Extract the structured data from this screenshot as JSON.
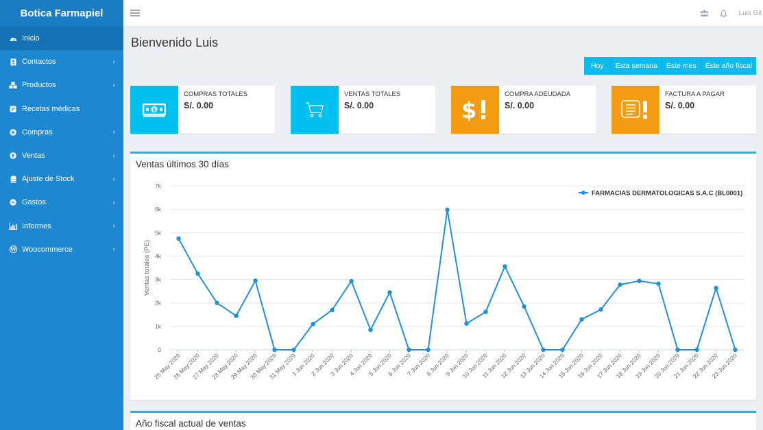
{
  "brand": "Botica Farmapiel",
  "sidebar": {
    "items": [
      {
        "label": "Inicio",
        "icon": "dashboard-icon",
        "active": true,
        "chevron": false
      },
      {
        "label": "Contactos",
        "icon": "address-book-icon",
        "chevron": true
      },
      {
        "label": "Productos",
        "icon": "cubes-icon",
        "chevron": true
      },
      {
        "label": "Recetas médicas",
        "icon": "prescription-icon",
        "chevron": false
      },
      {
        "label": "Compras",
        "icon": "plus-circle-icon",
        "chevron": true
      },
      {
        "label": "Ventas",
        "icon": "arrow-circle-icon",
        "chevron": true
      },
      {
        "label": "Ajuste de Stock",
        "icon": "database-icon",
        "chevron": true
      },
      {
        "label": "Gastos",
        "icon": "minus-circle-icon",
        "chevron": true
      },
      {
        "label": "Informes",
        "icon": "bar-chart-icon",
        "chevron": true
      },
      {
        "label": "Woocommerce",
        "icon": "wordpress-icon",
        "chevron": true
      }
    ],
    "chevron_glyph": "‹"
  },
  "header": {
    "user": "Luis Gil",
    "icons": [
      "users-icon",
      "bell-icon"
    ]
  },
  "main": {
    "title": "Bienvenido Luis",
    "filters": [
      "Hoy",
      "Esta semana",
      "Este mes",
      "Este año fiscal"
    ],
    "info_boxes": [
      {
        "label": "COMPRAS TOTALES",
        "value": "S/. 0.00",
        "color": "#00c0ef",
        "icon": "money-icon"
      },
      {
        "label": "VENTAS TOTALES",
        "value": "S/. 0.00",
        "color": "#00c0ef",
        "icon": "cart-icon"
      },
      {
        "label": "COMPRA ADEUDADA",
        "value": "S/. 0.00",
        "color": "#f39c12",
        "icon": "dollar-exclamation-icon"
      },
      {
        "label": "FACTURA A PAGAR",
        "value": "S/. 0.00",
        "color": "#f39c12",
        "icon": "invoice-exclamation-icon"
      }
    ],
    "sales_panel_title": "Ventas últimos 30 días",
    "fiscal_panel_title": "Año fiscal actual de ventas"
  },
  "chart_data": {
    "type": "line",
    "title": "",
    "ylabel": "Ventas totales (PE)",
    "ylim": [
      0,
      7000
    ],
    "yticks": [
      "0",
      "1k",
      "2k",
      "3k",
      "4k",
      "5k",
      "6k",
      "7k"
    ],
    "categories": [
      "25 May 2020",
      "26 May 2020",
      "27 May 2020",
      "28 May 2020",
      "29 May 2020",
      "30 May 2020",
      "31 May 2020",
      "1 Jun 2020",
      "2 Jun 2020",
      "3 Jun 2020",
      "4 Jun 2020",
      "5 Jun 2020",
      "6 Jun 2020",
      "7 Jun 2020",
      "8 Jun 2020",
      "9 Jun 2020",
      "10 Jun 2020",
      "11 Jun 2020",
      "12 Jun 2020",
      "13 Jun 2020",
      "14 Jun 2020",
      "15 Jun 2020",
      "16 Jun 2020",
      "17 Jun 2020",
      "18 Jun 2020",
      "19 Jun 2020",
      "20 Jun 2020",
      "21 Jun 2020",
      "22 Jun 2020",
      "23 Jun 2020"
    ],
    "series": [
      {
        "name": "FARMACIAS DERMATOLOGICAS S.A.C (BL0001)",
        "color": "#1e90e0",
        "values": [
          4750,
          3250,
          2000,
          1450,
          2950,
          0,
          0,
          1100,
          1700,
          2930,
          850,
          2450,
          0,
          0,
          5980,
          1120,
          1620,
          3560,
          1850,
          0,
          0,
          1300,
          1720,
          2780,
          2940,
          2820,
          0,
          0,
          2640,
          0
        ]
      }
    ],
    "legend": "top-right",
    "grid": true
  }
}
